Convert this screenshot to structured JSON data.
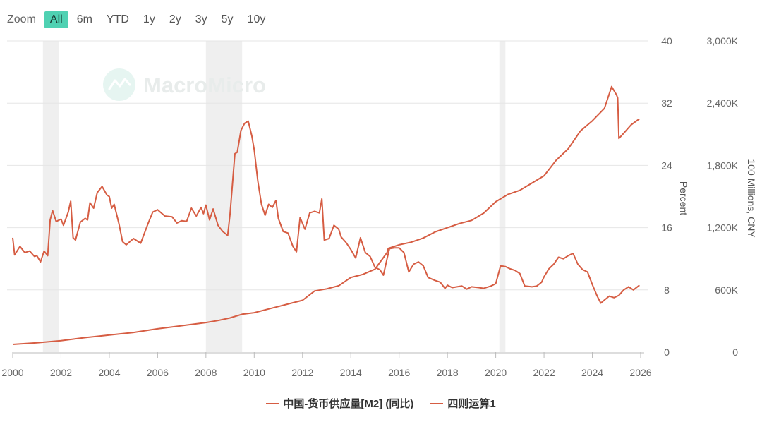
{
  "zoom": {
    "label": "Zoom",
    "buttons": [
      "All",
      "6m",
      "YTD",
      "1y",
      "2y",
      "3y",
      "5y",
      "10y"
    ],
    "active": "All"
  },
  "watermark": "MacroMicro",
  "colors": {
    "series": "#d65d43",
    "recession": "#efefef",
    "grid": "#e6e6e6",
    "zoom_active": "#4fd1b2",
    "watermark": "#e8eceb"
  },
  "chart_data": {
    "type": "line",
    "xlim": [
      2000,
      2026
    ],
    "x_ticks": [
      "2000",
      "2002",
      "2004",
      "2006",
      "2008",
      "2010",
      "2012",
      "2014",
      "2016",
      "2018",
      "2020",
      "2022",
      "2024",
      "2026"
    ],
    "left_axis": {
      "title": "Percent",
      "range": [
        0,
        40
      ],
      "ticks": [
        "0",
        "8",
        "16",
        "24",
        "32",
        "40"
      ]
    },
    "right_axis": {
      "title": "100 Millions, CNY",
      "range": [
        0,
        3000000
      ],
      "ticks": [
        "0",
        "600K",
        "1,200K",
        "1,800K",
        "2,400K",
        "3,000K"
      ]
    },
    "recession_bands": [
      [
        2001.25,
        2001.9
      ],
      [
        2008.0,
        2009.5
      ],
      [
        2020.15,
        2020.4
      ]
    ],
    "grid": true,
    "legend_position": "bottom",
    "series": [
      {
        "name": "中国-货币供应量[M2] (同比)",
        "axis": "left",
        "points": [
          [
            2000.0,
            14.7
          ],
          [
            2000.08,
            12.5
          ],
          [
            2000.3,
            13.6
          ],
          [
            2000.5,
            12.8
          ],
          [
            2000.7,
            13.0
          ],
          [
            2000.9,
            12.3
          ],
          [
            2001.0,
            12.4
          ],
          [
            2001.15,
            11.6
          ],
          [
            2001.3,
            13.0
          ],
          [
            2001.45,
            12.4
          ],
          [
            2001.55,
            17.0
          ],
          [
            2001.65,
            18.2
          ],
          [
            2001.8,
            16.8
          ],
          [
            2002.0,
            17.1
          ],
          [
            2002.1,
            16.3
          ],
          [
            2002.3,
            18.0
          ],
          [
            2002.4,
            19.4
          ],
          [
            2002.5,
            14.7
          ],
          [
            2002.6,
            14.4
          ],
          [
            2002.8,
            16.7
          ],
          [
            2003.0,
            17.2
          ],
          [
            2003.1,
            17.0
          ],
          [
            2003.2,
            19.2
          ],
          [
            2003.35,
            18.5
          ],
          [
            2003.5,
            20.5
          ],
          [
            2003.7,
            21.3
          ],
          [
            2003.9,
            20.2
          ],
          [
            2004.0,
            20.0
          ],
          [
            2004.1,
            18.5
          ],
          [
            2004.2,
            19.0
          ],
          [
            2004.4,
            16.5
          ],
          [
            2004.55,
            14.2
          ],
          [
            2004.7,
            13.8
          ],
          [
            2005.0,
            14.6
          ],
          [
            2005.3,
            14.0
          ],
          [
            2005.6,
            16.5
          ],
          [
            2005.8,
            18.0
          ],
          [
            2006.0,
            18.3
          ],
          [
            2006.3,
            17.5
          ],
          [
            2006.6,
            17.4
          ],
          [
            2006.8,
            16.6
          ],
          [
            2007.0,
            16.9
          ],
          [
            2007.2,
            16.8
          ],
          [
            2007.4,
            18.5
          ],
          [
            2007.6,
            17.5
          ],
          [
            2007.8,
            18.6
          ],
          [
            2007.9,
            17.8
          ],
          [
            2008.0,
            18.9
          ],
          [
            2008.15,
            17.0
          ],
          [
            2008.3,
            18.4
          ],
          [
            2008.5,
            16.3
          ],
          [
            2008.7,
            15.5
          ],
          [
            2008.9,
            15.0
          ],
          [
            2009.0,
            17.8
          ],
          [
            2009.2,
            25.5
          ],
          [
            2009.3,
            25.7
          ],
          [
            2009.45,
            28.5
          ],
          [
            2009.6,
            29.4
          ],
          [
            2009.75,
            29.7
          ],
          [
            2009.9,
            27.8
          ],
          [
            2010.0,
            26.0
          ],
          [
            2010.15,
            22.0
          ],
          [
            2010.3,
            19.0
          ],
          [
            2010.45,
            17.6
          ],
          [
            2010.6,
            19.0
          ],
          [
            2010.75,
            18.6
          ],
          [
            2010.9,
            19.5
          ],
          [
            2011.0,
            17.2
          ],
          [
            2011.2,
            15.5
          ],
          [
            2011.4,
            15.3
          ],
          [
            2011.6,
            13.6
          ],
          [
            2011.75,
            12.9
          ],
          [
            2011.9,
            17.3
          ],
          [
            2012.1,
            15.8
          ],
          [
            2012.3,
            17.9
          ],
          [
            2012.5,
            18.1
          ],
          [
            2012.7,
            17.9
          ],
          [
            2012.8,
            19.7
          ],
          [
            2012.9,
            14.4
          ],
          [
            2013.1,
            14.6
          ],
          [
            2013.3,
            16.3
          ],
          [
            2013.5,
            15.8
          ],
          [
            2013.6,
            14.8
          ],
          [
            2013.8,
            14.1
          ],
          [
            2014.0,
            13.2
          ],
          [
            2014.2,
            12.1
          ],
          [
            2014.4,
            14.7
          ],
          [
            2014.6,
            12.8
          ],
          [
            2014.8,
            12.3
          ],
          [
            2015.0,
            10.9
          ],
          [
            2015.2,
            10.6
          ],
          [
            2015.35,
            9.9
          ],
          [
            2015.5,
            12.0
          ],
          [
            2015.6,
            13.3
          ],
          [
            2015.8,
            13.4
          ],
          [
            2016.0,
            13.4
          ],
          [
            2016.2,
            12.8
          ],
          [
            2016.4,
            10.3
          ],
          [
            2016.6,
            11.3
          ],
          [
            2016.8,
            11.6
          ],
          [
            2017.0,
            11.1
          ],
          [
            2017.2,
            9.6
          ],
          [
            2017.5,
            9.2
          ],
          [
            2017.7,
            9.0
          ],
          [
            2017.9,
            8.2
          ],
          [
            2018.0,
            8.6
          ],
          [
            2018.2,
            8.3
          ],
          [
            2018.4,
            8.4
          ],
          [
            2018.6,
            8.5
          ],
          [
            2018.8,
            8.1
          ],
          [
            2019.0,
            8.4
          ],
          [
            2019.3,
            8.3
          ],
          [
            2019.5,
            8.2
          ],
          [
            2019.8,
            8.5
          ],
          [
            2020.0,
            8.8
          ],
          [
            2020.2,
            11.1
          ],
          [
            2020.4,
            11.0
          ],
          [
            2020.6,
            10.7
          ],
          [
            2020.8,
            10.5
          ],
          [
            2021.0,
            10.1
          ],
          [
            2021.2,
            8.5
          ],
          [
            2021.5,
            8.4
          ],
          [
            2021.7,
            8.5
          ],
          [
            2021.9,
            9.0
          ],
          [
            2022.0,
            9.7
          ],
          [
            2022.2,
            10.7
          ],
          [
            2022.4,
            11.3
          ],
          [
            2022.6,
            12.2
          ],
          [
            2022.8,
            12.0
          ],
          [
            2023.0,
            12.4
          ],
          [
            2023.2,
            12.7
          ],
          [
            2023.4,
            11.3
          ],
          [
            2023.6,
            10.6
          ],
          [
            2023.8,
            10.3
          ],
          [
            2024.0,
            8.7
          ],
          [
            2024.2,
            7.2
          ],
          [
            2024.35,
            6.3
          ],
          [
            2024.5,
            6.7
          ],
          [
            2024.7,
            7.2
          ],
          [
            2024.9,
            7.0
          ],
          [
            2025.1,
            7.3
          ],
          [
            2025.3,
            8.0
          ],
          [
            2025.5,
            8.4
          ],
          [
            2025.7,
            8.0
          ],
          [
            2025.95,
            8.6
          ]
        ]
      },
      {
        "name": "四则运算1",
        "axis": "right",
        "points": [
          [
            2000.0,
            75000
          ],
          [
            2001.0,
            90000
          ],
          [
            2002.0,
            110000
          ],
          [
            2003.0,
            140000
          ],
          [
            2004.0,
            165000
          ],
          [
            2005.0,
            190000
          ],
          [
            2006.0,
            225000
          ],
          [
            2007.0,
            255000
          ],
          [
            2008.0,
            285000
          ],
          [
            2008.5,
            305000
          ],
          [
            2009.0,
            330000
          ],
          [
            2009.5,
            365000
          ],
          [
            2010.0,
            380000
          ],
          [
            2010.5,
            410000
          ],
          [
            2011.0,
            440000
          ],
          [
            2011.5,
            470000
          ],
          [
            2012.0,
            500000
          ],
          [
            2012.5,
            590000
          ],
          [
            2013.0,
            610000
          ],
          [
            2013.5,
            640000
          ],
          [
            2014.0,
            720000
          ],
          [
            2014.5,
            750000
          ],
          [
            2015.0,
            800000
          ],
          [
            2015.5,
            960000
          ],
          [
            2015.55,
            1000000
          ],
          [
            2016.0,
            1035000
          ],
          [
            2016.5,
            1060000
          ],
          [
            2017.0,
            1100000
          ],
          [
            2017.5,
            1160000
          ],
          [
            2018.0,
            1200000
          ],
          [
            2018.5,
            1240000
          ],
          [
            2019.0,
            1270000
          ],
          [
            2019.5,
            1340000
          ],
          [
            2020.0,
            1450000
          ],
          [
            2020.5,
            1520000
          ],
          [
            2021.0,
            1560000
          ],
          [
            2021.5,
            1630000
          ],
          [
            2022.0,
            1700000
          ],
          [
            2022.5,
            1850000
          ],
          [
            2023.0,
            1960000
          ],
          [
            2023.5,
            2130000
          ],
          [
            2024.0,
            2230000
          ],
          [
            2024.5,
            2350000
          ],
          [
            2024.8,
            2560000
          ],
          [
            2025.0,
            2480000
          ],
          [
            2025.05,
            2450000
          ],
          [
            2025.1,
            2060000
          ],
          [
            2025.3,
            2110000
          ],
          [
            2025.6,
            2190000
          ],
          [
            2025.95,
            2250000
          ]
        ]
      }
    ]
  }
}
